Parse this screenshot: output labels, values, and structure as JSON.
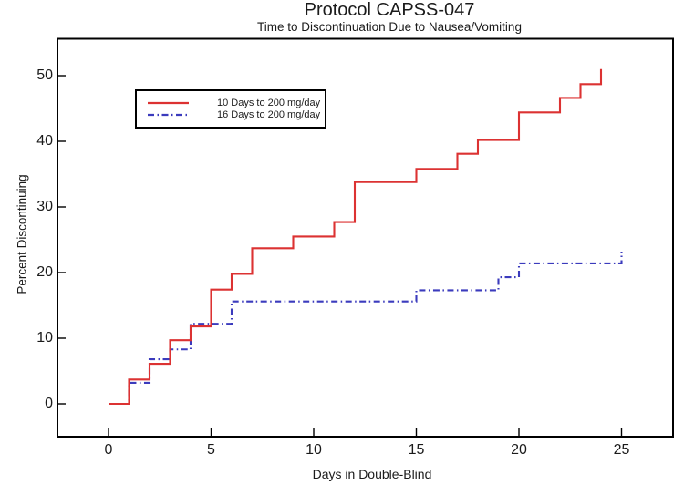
{
  "figure": {
    "background": "#ffffff"
  },
  "chart_data": {
    "type": "line",
    "subtype": "kaplan-meier-step",
    "title": "Protocol CAPSS-047",
    "subtitle": "Time to Discontinuation Due to Nausea/Vomiting",
    "xlabel": "Days in Double-Blind",
    "ylabel": "Percent Discontinuing",
    "xlim": [
      -2.5,
      27.5
    ],
    "ylim": [
      -5,
      55.5
    ],
    "x_ticks": [
      0,
      5,
      10,
      15,
      20,
      25
    ],
    "y_ticks": [
      0,
      10,
      20,
      30,
      40,
      50
    ],
    "grid": false,
    "legend_position": "upper-left-inside",
    "axis_color": "#000000",
    "text_color": "#1b1b1b",
    "series": [
      {
        "name": "10 Days to 200 mg/day",
        "color": "#dc3232",
        "line_style": "solid",
        "points_day_percent": [
          [
            0,
            0
          ],
          [
            1,
            3.7
          ],
          [
            2,
            6.1
          ],
          [
            3,
            9.7
          ],
          [
            4,
            11.8
          ],
          [
            5,
            17.4
          ],
          [
            6,
            19.8
          ],
          [
            7,
            23.7
          ],
          [
            9,
            25.5
          ],
          [
            11,
            27.7
          ],
          [
            12,
            33.8
          ],
          [
            15,
            35.8
          ],
          [
            17,
            38.1
          ],
          [
            18,
            40.2
          ],
          [
            20,
            44.4
          ],
          [
            22,
            46.6
          ],
          [
            23,
            48.7
          ],
          [
            24,
            51.0
          ]
        ]
      },
      {
        "name": "16 Days to 200 mg/day",
        "color": "#3b3bbd",
        "line_style": "dash-dot",
        "points_day_percent": [
          [
            0,
            0
          ],
          [
            1,
            3.2
          ],
          [
            2,
            6.8
          ],
          [
            3,
            8.3
          ],
          [
            4,
            12.2
          ],
          [
            6,
            15.6
          ],
          [
            15,
            17.3
          ],
          [
            19,
            19.3
          ],
          [
            20,
            21.4
          ],
          [
            25,
            23.2
          ]
        ]
      }
    ]
  }
}
